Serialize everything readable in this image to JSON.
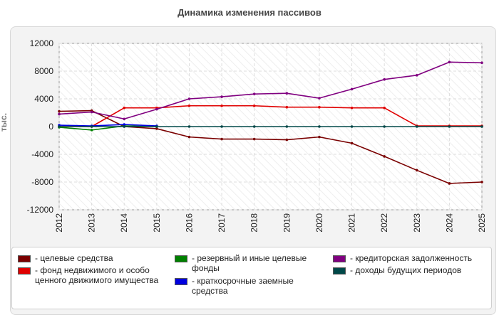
{
  "chart_data": {
    "type": "line",
    "title": "Динамика изменения пассивов",
    "ylabel": "тыс.",
    "ylim": [
      -12000,
      12000
    ],
    "yticks": [
      12000,
      8000,
      4000,
      0,
      -4000,
      -8000,
      -12000
    ],
    "categories": [
      "2012",
      "2013",
      "2014",
      "2015",
      "2016",
      "2017",
      "2018",
      "2019",
      "2020",
      "2021",
      "2022",
      "2023",
      "2024",
      "2025"
    ],
    "series": [
      {
        "name": "- целевые средства",
        "color": "#7a0000",
        "x": [
          "2012",
          "2013",
          "2014",
          "2015",
          "2016",
          "2017",
          "2018",
          "2019",
          "2020",
          "2021",
          "2022",
          "2023",
          "2024",
          "2025"
        ],
        "values": [
          2200,
          2300,
          0,
          -300,
          -1500,
          -1800,
          -1800,
          -1900,
          -1500,
          -2400,
          -4300,
          -6300,
          -8200,
          -8000
        ]
      },
      {
        "name": "- фонд недвижимого и особо ценного движимого имущества",
        "color": "#e00000",
        "x": [
          "2012",
          "2013",
          "2014",
          "2015",
          "2016",
          "2017",
          "2018",
          "2019",
          "2020",
          "2021",
          "2022",
          "2023",
          "2024",
          "2025"
        ],
        "values": [
          0,
          0,
          2700,
          2700,
          3000,
          3000,
          3000,
          2800,
          2800,
          2700,
          2700,
          100,
          100,
          100
        ]
      },
      {
        "name": "- резервный и иные целевые фонды",
        "color": "#008000",
        "x": [
          "2012",
          "2013",
          "2014",
          "2015"
        ],
        "values": [
          -100,
          -500,
          100,
          0
        ]
      },
      {
        "name": "- краткосрочные заемные средства",
        "color": "#0000e0",
        "x": [
          "2012",
          "2013",
          "2014",
          "2015"
        ],
        "values": [
          200,
          100,
          300,
          100
        ]
      },
      {
        "name": "- кредиторская задолженность",
        "color": "#800080",
        "x": [
          "2012",
          "2013",
          "2014",
          "2015",
          "2016",
          "2017",
          "2018",
          "2019",
          "2020",
          "2021",
          "2022",
          "2023",
          "2024",
          "2025"
        ],
        "values": [
          1800,
          2100,
          1100,
          2500,
          4000,
          4300,
          4700,
          4800,
          4100,
          5400,
          6800,
          7400,
          9300,
          9200
        ]
      },
      {
        "name": "- доходы будущих периодов",
        "color": "#004848",
        "x": [
          "2012",
          "2013",
          "2014",
          "2015",
          "2016",
          "2017",
          "2018",
          "2019",
          "2020",
          "2021",
          "2022",
          "2023",
          "2024",
          "2025"
        ],
        "values": [
          0,
          0,
          0,
          0,
          0,
          0,
          0,
          0,
          0,
          0,
          0,
          0,
          0,
          0
        ]
      }
    ],
    "grid": true,
    "legend_position": "bottom"
  }
}
